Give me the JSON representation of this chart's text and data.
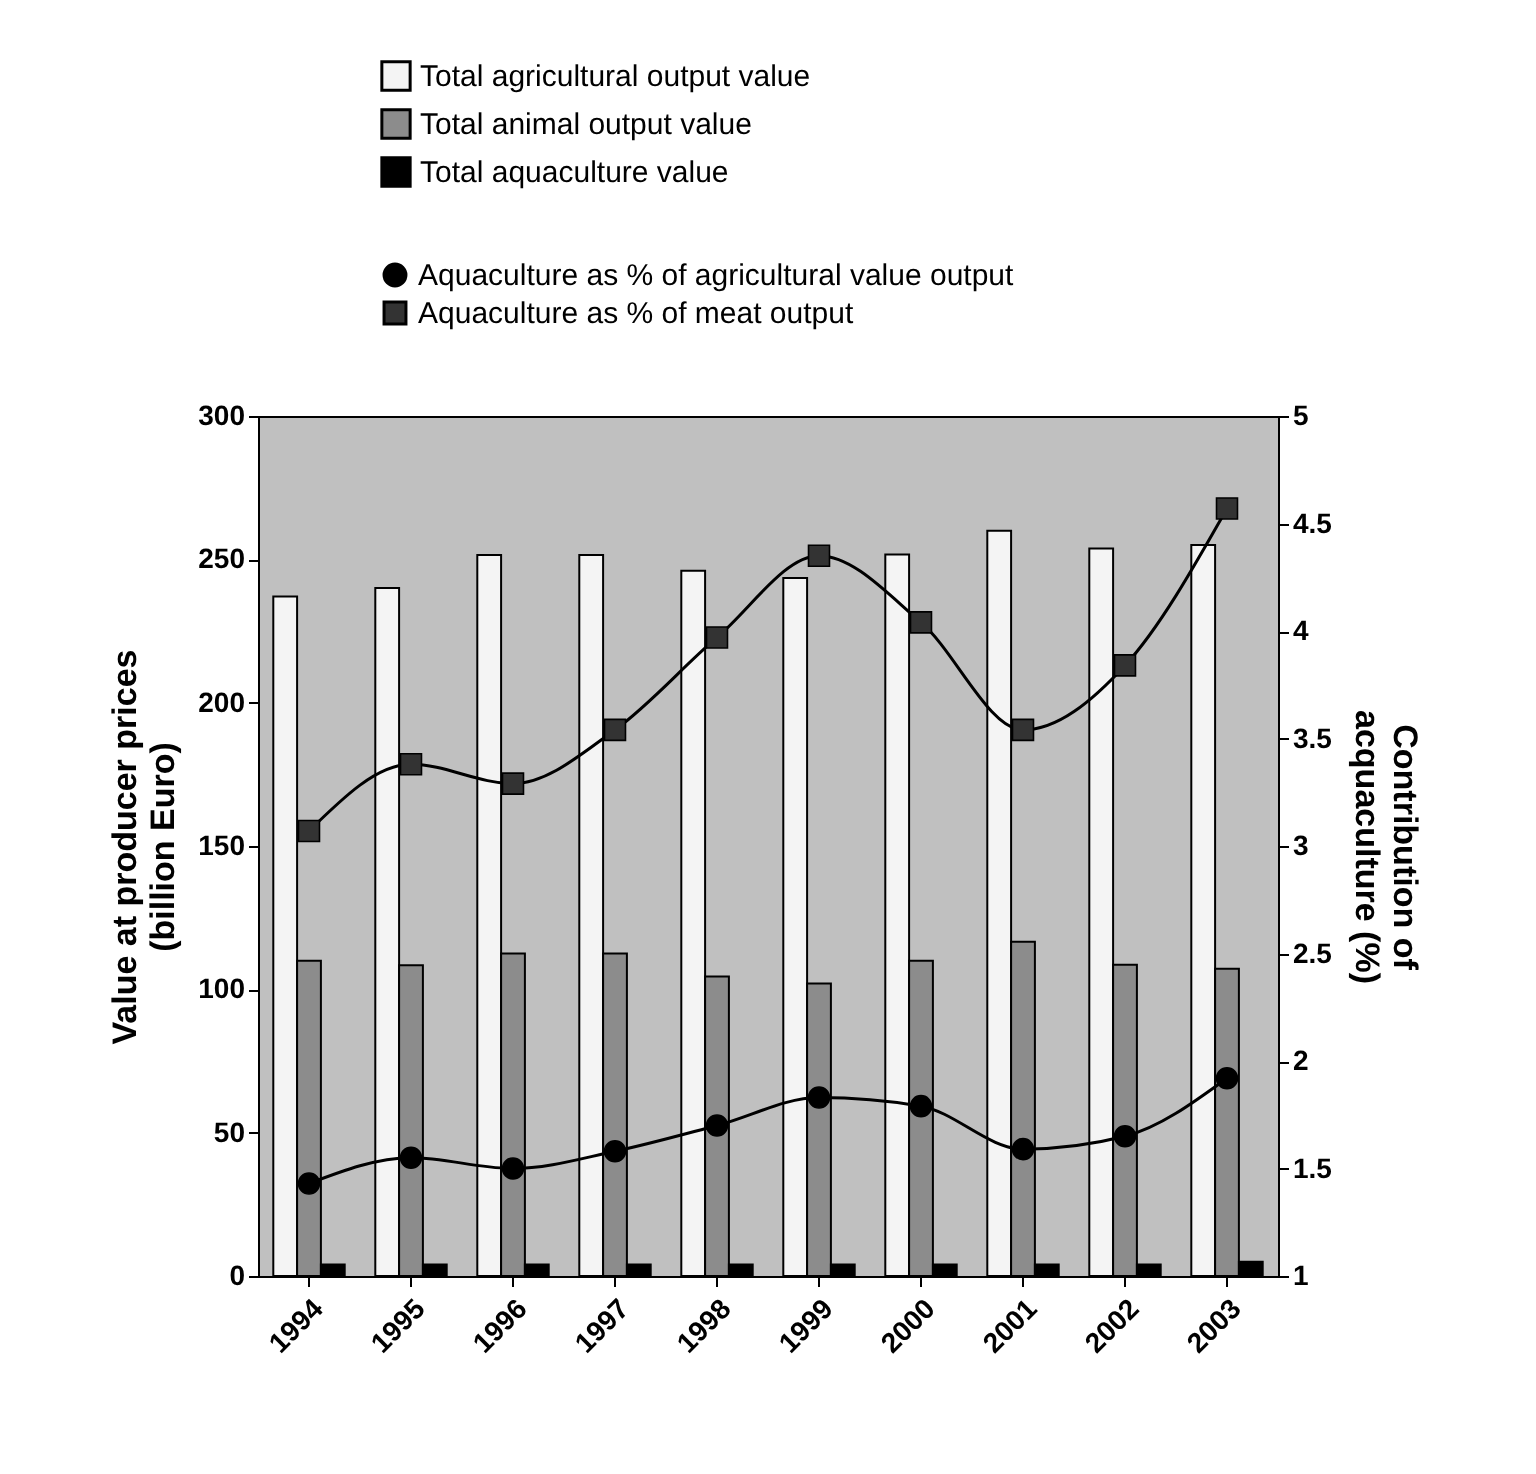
{
  "chart_data": {
    "type": "bar",
    "categories": [
      "1994",
      "1995",
      "1996",
      "1997",
      "1998",
      "1999",
      "2000",
      "2001",
      "2002",
      "2003"
    ],
    "ylabel": "Value at producer prices\n(billion Euro)",
    "y2label": "Contribution of\nacquaculture (%)",
    "ylim": [
      0,
      300
    ],
    "yticks": [
      0,
      50,
      100,
      150,
      200,
      250,
      300
    ],
    "y2lim": [
      1,
      5
    ],
    "y2ticks": [
      1,
      1.5,
      2,
      2.5,
      3,
      3.5,
      4,
      4.5,
      5
    ],
    "legend": "top",
    "grid": false,
    "series": [
      {
        "name": "Total agricultural output value",
        "color": "#f4f4f4",
        "values": [
          237,
          240,
          251.5,
          251.5,
          246,
          243.5,
          251.7,
          260,
          253.8,
          255
        ]
      },
      {
        "name": "Total animal output value",
        "color": "#8c8c8c",
        "values": [
          110,
          108.4,
          112.5,
          112.5,
          104.5,
          102,
          110,
          116.6,
          108.6,
          107.2
        ]
      },
      {
        "name": "Total aquaculture value",
        "color": "#000000",
        "values": [
          4,
          4,
          4,
          4,
          4,
          4,
          4,
          4,
          4,
          5
        ]
      },
      {
        "name": "Aquaculture as % of  agricultural value output",
        "type": "line",
        "axis": "y2",
        "marker": "circle",
        "color": "#000000",
        "values": [
          1.43,
          1.55,
          1.5,
          1.58,
          1.7,
          1.83,
          1.79,
          1.59,
          1.65,
          1.92
        ]
      },
      {
        "name": "Aquaculture as % of meat output",
        "type": "line",
        "axis": "y2",
        "marker": "square",
        "color": "#333333",
        "values": [
          3.07,
          3.38,
          3.29,
          3.54,
          3.97,
          4.35,
          4.04,
          3.54,
          3.84,
          4.57
        ]
      }
    ]
  }
}
